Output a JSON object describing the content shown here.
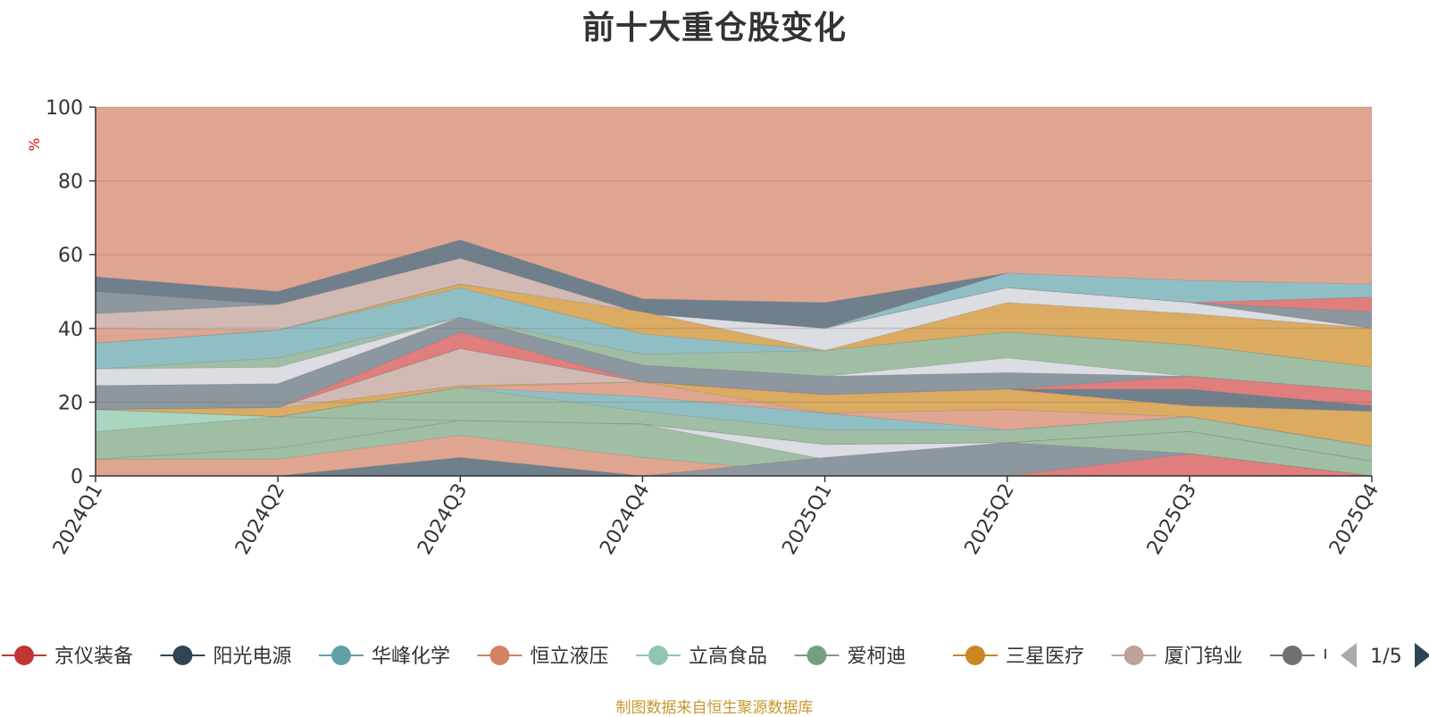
{
  "chart_data": {
    "type": "area",
    "title": "前十大重仓股变化",
    "ylabel": "%",
    "xlabel": "",
    "ylim": [
      0,
      100
    ],
    "y_ticks": [
      0,
      20,
      40,
      60,
      80,
      100
    ],
    "categories": [
      "2024Q1",
      "2024Q2",
      "2024Q3",
      "2024Q4",
      "2025Q1",
      "2025Q2",
      "2025Q3",
      "2025Q4"
    ],
    "bands": [
      {
        "name": "b1",
        "color": "#e0a590",
        "bottom": [
          0,
          0,
          0,
          0,
          0,
          0,
          0,
          0
        ],
        "top": [
          100,
          100,
          100,
          100,
          100,
          100,
          100,
          100
        ]
      },
      {
        "name": "b2",
        "color": "#6f808c",
        "bottom": [
          0,
          0,
          0,
          0,
          0,
          0,
          0,
          0
        ],
        "top": [
          54,
          50,
          64,
          48,
          47,
          55,
          47,
          41
        ]
      },
      {
        "name": "b3",
        "color": "#8fbfc5",
        "bottom": [
          0,
          0,
          0,
          0,
          0,
          0,
          0,
          0
        ],
        "top": [
          50,
          46.5,
          59,
          44,
          40,
          55,
          53,
          52
        ]
      },
      {
        "name": "b4",
        "color": "#e07e7d",
        "bottom": [
          0,
          0,
          0,
          0,
          0,
          0,
          0,
          0
        ],
        "top": [
          50,
          46.5,
          59,
          44,
          40,
          51,
          47,
          48.5
        ]
      },
      {
        "name": "b5",
        "color": "#8c979f",
        "bottom": [
          0,
          0,
          0,
          0,
          0,
          0,
          0,
          0
        ],
        "top": [
          50,
          46.5,
          59,
          44,
          40,
          51,
          47,
          44.5
        ]
      },
      {
        "name": "b6",
        "color": "#d1bab4",
        "bottom": [
          0,
          0,
          0,
          0,
          0,
          0,
          0,
          0
        ],
        "top": [
          44,
          46.5,
          59,
          44,
          40,
          51,
          47,
          40
        ]
      },
      {
        "name": "b7",
        "color": "#e0a590",
        "bottom": [
          0,
          0,
          0,
          0,
          0,
          0,
          0,
          0
        ],
        "top": [
          40,
          39.5,
          52,
          44,
          40,
          51,
          47,
          40
        ]
      },
      {
        "name": "b8",
        "color": "#dbdde3",
        "bottom": [
          0,
          0,
          0,
          0,
          0,
          0,
          0,
          0
        ],
        "top": [
          36,
          39.5,
          52,
          44,
          40,
          51,
          47,
          40
        ]
      },
      {
        "name": "b9",
        "color": "#dbab62",
        "bottom": [
          0,
          0,
          0,
          0,
          0,
          0,
          0,
          0
        ],
        "top": [
          36,
          39.5,
          52,
          44.5,
          34,
          47,
          44,
          40
        ]
      },
      {
        "name": "b10",
        "color": "#8fbfc5",
        "bottom": [
          0,
          0,
          0,
          0,
          0,
          0,
          0,
          0
        ],
        "top": [
          36,
          39.5,
          51,
          38.5,
          34,
          39,
          35.5,
          29.5
        ]
      },
      {
        "name": "b11",
        "color": "#9fbea3",
        "bottom": [
          0,
          0,
          0,
          0,
          0,
          0,
          0,
          0
        ],
        "top": [
          29,
          32,
          43,
          33,
          34,
          39,
          35.5,
          29.5
        ]
      },
      {
        "name": "b12",
        "color": "#dbdde3",
        "bottom": [
          0,
          0,
          0,
          0,
          0,
          0,
          0,
          0
        ],
        "top": [
          29,
          29.5,
          43,
          30,
          27,
          32,
          27,
          23
        ]
      },
      {
        "name": "b13",
        "color": "#8c979f",
        "bottom": [
          0,
          0,
          0,
          0,
          0,
          0,
          0,
          0
        ],
        "top": [
          24.5,
          25,
          43,
          30,
          27,
          28,
          27,
          23
        ]
      },
      {
        "name": "b14",
        "color": "#e07e7d",
        "bottom": [
          0,
          0,
          0,
          0,
          0,
          0,
          0,
          0
        ],
        "top": [
          18,
          18.5,
          39,
          25.5,
          22,
          23.5,
          27,
          23
        ]
      },
      {
        "name": "b15",
        "color": "#6f808c",
        "bottom": [
          0,
          0,
          0,
          0,
          0,
          0,
          0,
          0
        ],
        "top": [
          18,
          18.5,
          34.5,
          25.5,
          22,
          23.5,
          23.5,
          19
        ]
      },
      {
        "name": "b16",
        "color": "#d1bab4",
        "bottom": [
          0,
          0,
          0,
          0,
          0,
          0,
          0,
          0
        ],
        "top": [
          18,
          18.5,
          34.5,
          25.5,
          22,
          23.5,
          19,
          17.5
        ]
      },
      {
        "name": "b17",
        "color": "#dbab62",
        "bottom": [
          0,
          0,
          0,
          0,
          0,
          0,
          0,
          0
        ],
        "top": [
          18,
          18.5,
          24.5,
          25.5,
          22,
          23.5,
          19,
          17.5
        ]
      },
      {
        "name": "b18",
        "color": "#e0a590",
        "bottom": [
          0,
          0,
          0,
          0,
          0,
          0,
          0,
          0
        ],
        "top": [
          18,
          16,
          24,
          25.5,
          17,
          18,
          16,
          8
        ]
      },
      {
        "name": "b19",
        "color": "#8fbfc5",
        "bottom": [
          0,
          0,
          0,
          0,
          0,
          0,
          0,
          0
        ],
        "top": [
          18,
          16,
          24,
          21.5,
          17,
          12.5,
          16,
          8
        ]
      },
      {
        "name": "b20",
        "color": "#9fbea3",
        "bottom": [
          0,
          0,
          0,
          0,
          0,
          0,
          0,
          0
        ],
        "top": [
          18,
          16,
          24,
          17.5,
          12.5,
          12.5,
          16,
          8
        ]
      },
      {
        "name": "b21",
        "color": "#a9d6c1",
        "bottom": [
          0,
          0,
          0,
          0,
          0,
          0,
          0,
          0
        ],
        "top": [
          18,
          16,
          15,
          14,
          8.5,
          9,
          12,
          4
        ]
      },
      {
        "name": "b22",
        "color": "#9fbea3",
        "bottom": [
          0,
          0,
          0,
          0,
          0,
          0,
          0,
          0
        ],
        "top": [
          12,
          16,
          15,
          14,
          8.5,
          9,
          12,
          4
        ]
      },
      {
        "name": "b23",
        "color": "#dbdde3",
        "bottom": [
          0,
          0,
          0,
          0,
          0,
          0,
          0,
          0
        ],
        "top": [
          4.5,
          7.5,
          15,
          14,
          8.5,
          9,
          12,
          4
        ]
      },
      {
        "name": "b24",
        "color": "#9fbea3",
        "bottom": [
          0,
          0,
          0,
          0,
          0,
          0,
          0,
          0
        ],
        "top": [
          4.5,
          7.5,
          15,
          14,
          4.5,
          9,
          12,
          4
        ]
      },
      {
        "name": "b25",
        "color": "#e0a590",
        "bottom": [
          0,
          0,
          0,
          0,
          0,
          0,
          0,
          0
        ],
        "top": [
          4.5,
          4.5,
          11,
          5,
          0.5,
          9,
          6,
          0
        ]
      },
      {
        "name": "b26",
        "color": "#8c979f",
        "bottom": [
          0,
          0,
          0,
          0,
          0,
          0,
          0,
          0
        ],
        "top": [
          0,
          0,
          0,
          0,
          5,
          9,
          6,
          0
        ]
      },
      {
        "name": "b27",
        "color": "#6f808c",
        "bottom": [
          0,
          0,
          0,
          0,
          0,
          0,
          0,
          0
        ],
        "top": [
          0,
          0,
          5,
          0,
          0,
          0,
          0,
          0
        ]
      },
      {
        "name": "b28",
        "color": "#e07e7d",
        "bottom": [
          0,
          0,
          0,
          0,
          0,
          0,
          0,
          0
        ],
        "top": [
          0,
          0,
          0,
          0,
          0,
          0,
          6,
          0
        ]
      }
    ],
    "legend": [
      {
        "name": "京仪装备",
        "color": "#c23531"
      },
      {
        "name": "阳光电源",
        "color": "#2f4554"
      },
      {
        "name": "华峰化学",
        "color": "#61a0a8"
      },
      {
        "name": "恒立液压",
        "color": "#d48265"
      },
      {
        "name": "立高食品",
        "color": "#91c7ae"
      },
      {
        "name": "爱柯迪",
        "color": "#749f83"
      },
      {
        "name": "三星医疗",
        "color": "#ca8622"
      },
      {
        "name": "厦门钨业",
        "color": "#bda29a"
      },
      {
        "name": "中国",
        "color": "#6e7074"
      }
    ],
    "legend_page": "1/5"
  },
  "footer": {
    "source": "制图数据来自恒生聚源数据库"
  }
}
